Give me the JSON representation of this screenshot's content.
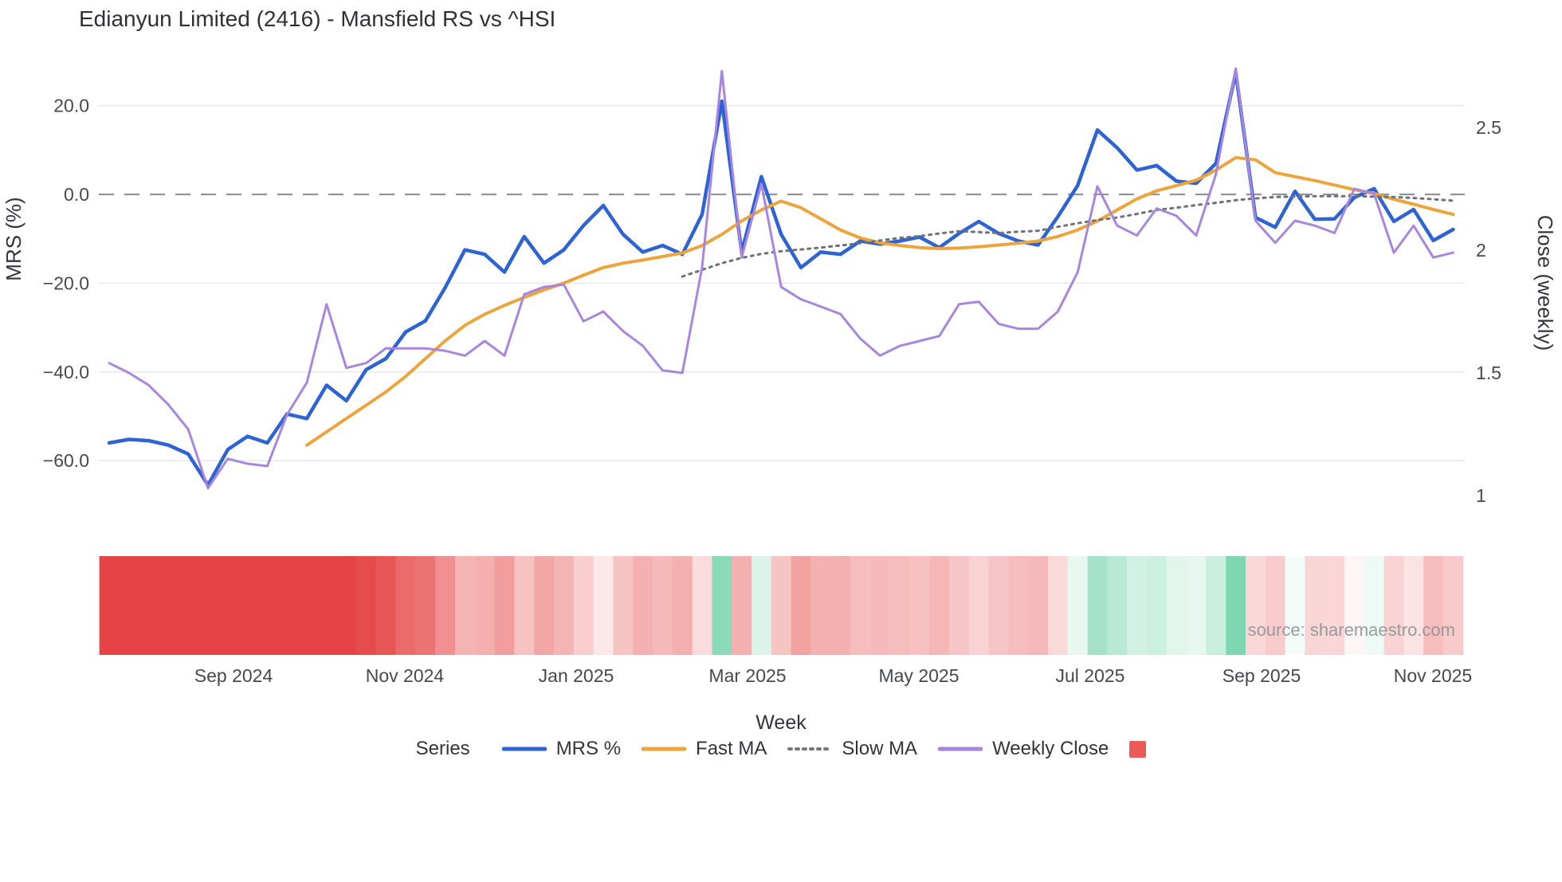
{
  "title": "Edianyun Limited (2416) - Mansfield RS vs ^HSI",
  "source_note": "source: sharemaestro.com",
  "axes": {
    "left": {
      "title": "MRS (%)",
      "tick_labels": [
        "20.0",
        "0.0",
        "−20.0",
        "−40.0",
        "−60.0"
      ],
      "tick_values": [
        20,
        0,
        -20,
        -40,
        -60
      ]
    },
    "right": {
      "title": "Close (weekly)",
      "tick_labels": [
        "2.5",
        "2",
        "1.5",
        "1"
      ],
      "tick_values": [
        2.5,
        2,
        1.5,
        1
      ]
    },
    "x": {
      "title": "Week",
      "tick_labels": [
        "Sep 2024",
        "Nov 2024",
        "Jan 2025",
        "Mar 2025",
        "May 2025",
        "Jul 2025",
        "Sep 2025",
        "Nov 2025"
      ]
    }
  },
  "legend": {
    "label": "Series",
    "items": [
      {
        "label": "MRS %",
        "swatch": "line",
        "color": "#2d63d2"
      },
      {
        "label": "Fast MA",
        "swatch": "line",
        "color": "#eda43c"
      },
      {
        "label": "Slow MA",
        "swatch": "dotted",
        "color": "#75797e"
      },
      {
        "label": "Weekly Close",
        "swatch": "line",
        "color": "#a886de"
      },
      {
        "label": "",
        "swatch": "square",
        "color": "#ec5b57"
      }
    ]
  },
  "colors": {
    "mrs_line": "#2d63d2",
    "fast_ma_line": "#eda43c",
    "slow_ma_line": "#6f7276",
    "weekly_close_line": "#a886de",
    "zero_line": "#90939a",
    "gridline": "#e9ebee",
    "strip_negative": "#e64444",
    "strip_positive": "#7ed7b2",
    "tick_text": "#45494e",
    "title_text": "#2e3238",
    "source_text": "#8f9398"
  },
  "chart_data": {
    "type": "line",
    "title": "Edianyun Limited (2416) - Mansfield RS vs ^HSI",
    "xlabel": "Week",
    "ylabel_left": "MRS (%)",
    "ylabel_right": "Close (weekly)",
    "ylim_left": [
      -70,
      28
    ],
    "ylim_right": [
      0.9,
      2.8
    ],
    "grid": true,
    "legend_position": "bottom",
    "x_weekly_dates": [
      "2024-07-22",
      "2024-07-29",
      "2024-08-05",
      "2024-08-12",
      "2024-08-19",
      "2024-08-26",
      "2024-09-02",
      "2024-09-09",
      "2024-09-16",
      "2024-09-23",
      "2024-09-30",
      "2024-10-07",
      "2024-10-14",
      "2024-10-21",
      "2024-10-28",
      "2024-11-04",
      "2024-11-11",
      "2024-11-18",
      "2024-11-25",
      "2024-12-02",
      "2024-12-09",
      "2024-12-16",
      "2024-12-23",
      "2024-12-30",
      "2025-01-06",
      "2025-01-13",
      "2025-01-20",
      "2025-01-27",
      "2025-02-03",
      "2025-02-10",
      "2025-02-17",
      "2025-02-24",
      "2025-03-03",
      "2025-03-10",
      "2025-03-17",
      "2025-03-24",
      "2025-03-31",
      "2025-04-07",
      "2025-04-14",
      "2025-04-21",
      "2025-04-28",
      "2025-05-05",
      "2025-05-12",
      "2025-05-19",
      "2025-05-26",
      "2025-06-02",
      "2025-06-09",
      "2025-06-16",
      "2025-06-23",
      "2025-06-30",
      "2025-07-07",
      "2025-07-14",
      "2025-07-21",
      "2025-07-28",
      "2025-08-04",
      "2025-08-11",
      "2025-08-18",
      "2025-08-25",
      "2025-09-01",
      "2025-09-08",
      "2025-09-15",
      "2025-09-22",
      "2025-09-29",
      "2025-10-06",
      "2025-10-13",
      "2025-10-20",
      "2025-10-27",
      "2025-11-03",
      "2025-11-10"
    ],
    "series": [
      {
        "name": "MRS %",
        "axis": "left",
        "style": "solid",
        "color": "#2d63d2",
        "width": 4.5,
        "values": [
          -56,
          -55.2,
          -55.5,
          -56.5,
          -58.5,
          -65.5,
          -57.5,
          -54.5,
          -56,
          -49.5,
          -50.5,
          -43,
          -46.5,
          -39.5,
          -37,
          -31,
          -28.5,
          -21,
          -12.5,
          -13.5,
          -17.5,
          -9.5,
          -15.5,
          -12.5,
          -7,
          -2.5,
          -9,
          -13,
          -11.5,
          -13.5,
          -4.5,
          21,
          -13,
          4,
          -9,
          -16.5,
          -13,
          -13.5,
          -10.5,
          -11.2,
          -10.5,
          -9.6,
          -12,
          -8.8,
          -6.1,
          -8.8,
          -10.5,
          -11.4,
          -5,
          2,
          14.5,
          10.5,
          5.5,
          6.5,
          3,
          2.5,
          7,
          27.5,
          -5.2,
          -7.4,
          0.7,
          -5.6,
          -5.5,
          -0.7,
          1.3,
          -6.1,
          -3.4,
          -10.4,
          -7.9
        ]
      },
      {
        "name": "Fast MA",
        "axis": "left",
        "style": "solid",
        "color": "#eda43c",
        "width": 4,
        "values": [
          null,
          null,
          null,
          null,
          null,
          null,
          null,
          null,
          null,
          null,
          -56.5,
          -53.5,
          -50.5,
          -47.5,
          -44.5,
          -41,
          -37,
          -33,
          -29.5,
          -27,
          -25,
          -23.2,
          -21.5,
          -20,
          -18.2,
          -16.5,
          -15.5,
          -14.8,
          -14,
          -13.2,
          -11.5,
          -9,
          -6,
          -3.5,
          -1.5,
          -3,
          -5.5,
          -8,
          -9.8,
          -10.9,
          -11.5,
          -12,
          -12.2,
          -12.1,
          -11.8,
          -11.4,
          -11,
          -10.5,
          -9.5,
          -8,
          -6,
          -3.5,
          -1,
          0.8,
          2,
          3.2,
          5.5,
          8.3,
          7.8,
          4.9,
          4,
          3.1,
          2.1,
          1.1,
          0.2,
          -1.1,
          -2.2,
          -3.4,
          -4.5
        ]
      },
      {
        "name": "Slow MA",
        "axis": "left",
        "style": "dotted",
        "color": "#6f7276",
        "width": 3,
        "values": [
          null,
          null,
          null,
          null,
          null,
          null,
          null,
          null,
          null,
          null,
          null,
          null,
          null,
          null,
          null,
          null,
          null,
          null,
          null,
          null,
          null,
          null,
          null,
          null,
          null,
          null,
          null,
          null,
          null,
          -18.5,
          -17,
          -15.5,
          -14.3,
          -13.4,
          -12.8,
          -12.4,
          -12,
          -11.5,
          -11,
          -10.4,
          -9.8,
          -9.4,
          -8.8,
          -8.3,
          -8.5,
          -8.7,
          -8.4,
          -8.2,
          -7.3,
          -6.5,
          -5.8,
          -5.2,
          -4.4,
          -3.5,
          -3,
          -2.4,
          -1.9,
          -1.3,
          -0.9,
          -0.6,
          -0.5,
          -0.4,
          -0.4,
          -0.4,
          -0.5,
          -0.6,
          -0.8,
          -1.1,
          -1.4
        ]
      },
      {
        "name": "Weekly Close",
        "axis": "right",
        "style": "solid",
        "color": "#a886de",
        "width": 3,
        "values": [
          1.54,
          1.5,
          1.45,
          1.37,
          1.27,
          1.03,
          1.15,
          1.13,
          1.12,
          1.33,
          1.46,
          1.78,
          1.52,
          1.54,
          1.6,
          1.6,
          1.6,
          1.59,
          1.57,
          1.63,
          1.57,
          1.82,
          1.85,
          1.86,
          1.71,
          1.75,
          1.67,
          1.61,
          1.51,
          1.5,
          1.93,
          2.73,
          1.97,
          2.27,
          1.85,
          1.8,
          1.77,
          1.74,
          1.64,
          1.57,
          1.61,
          1.63,
          1.65,
          1.78,
          1.79,
          1.7,
          1.68,
          1.68,
          1.75,
          1.91,
          2.26,
          2.1,
          2.06,
          2.17,
          2.14,
          2.06,
          2.31,
          2.74,
          2.12,
          2.03,
          2.12,
          2.1,
          2.07,
          2.25,
          2.23,
          1.99,
          2.1,
          1.97,
          1.99
        ]
      }
    ],
    "bottom_strip": {
      "description": "weekly heat strip derived from MRS % sign and magnitude (red negative, green positive)",
      "negative_color": "#e64444",
      "positive_color": "#7ed7b2"
    }
  }
}
